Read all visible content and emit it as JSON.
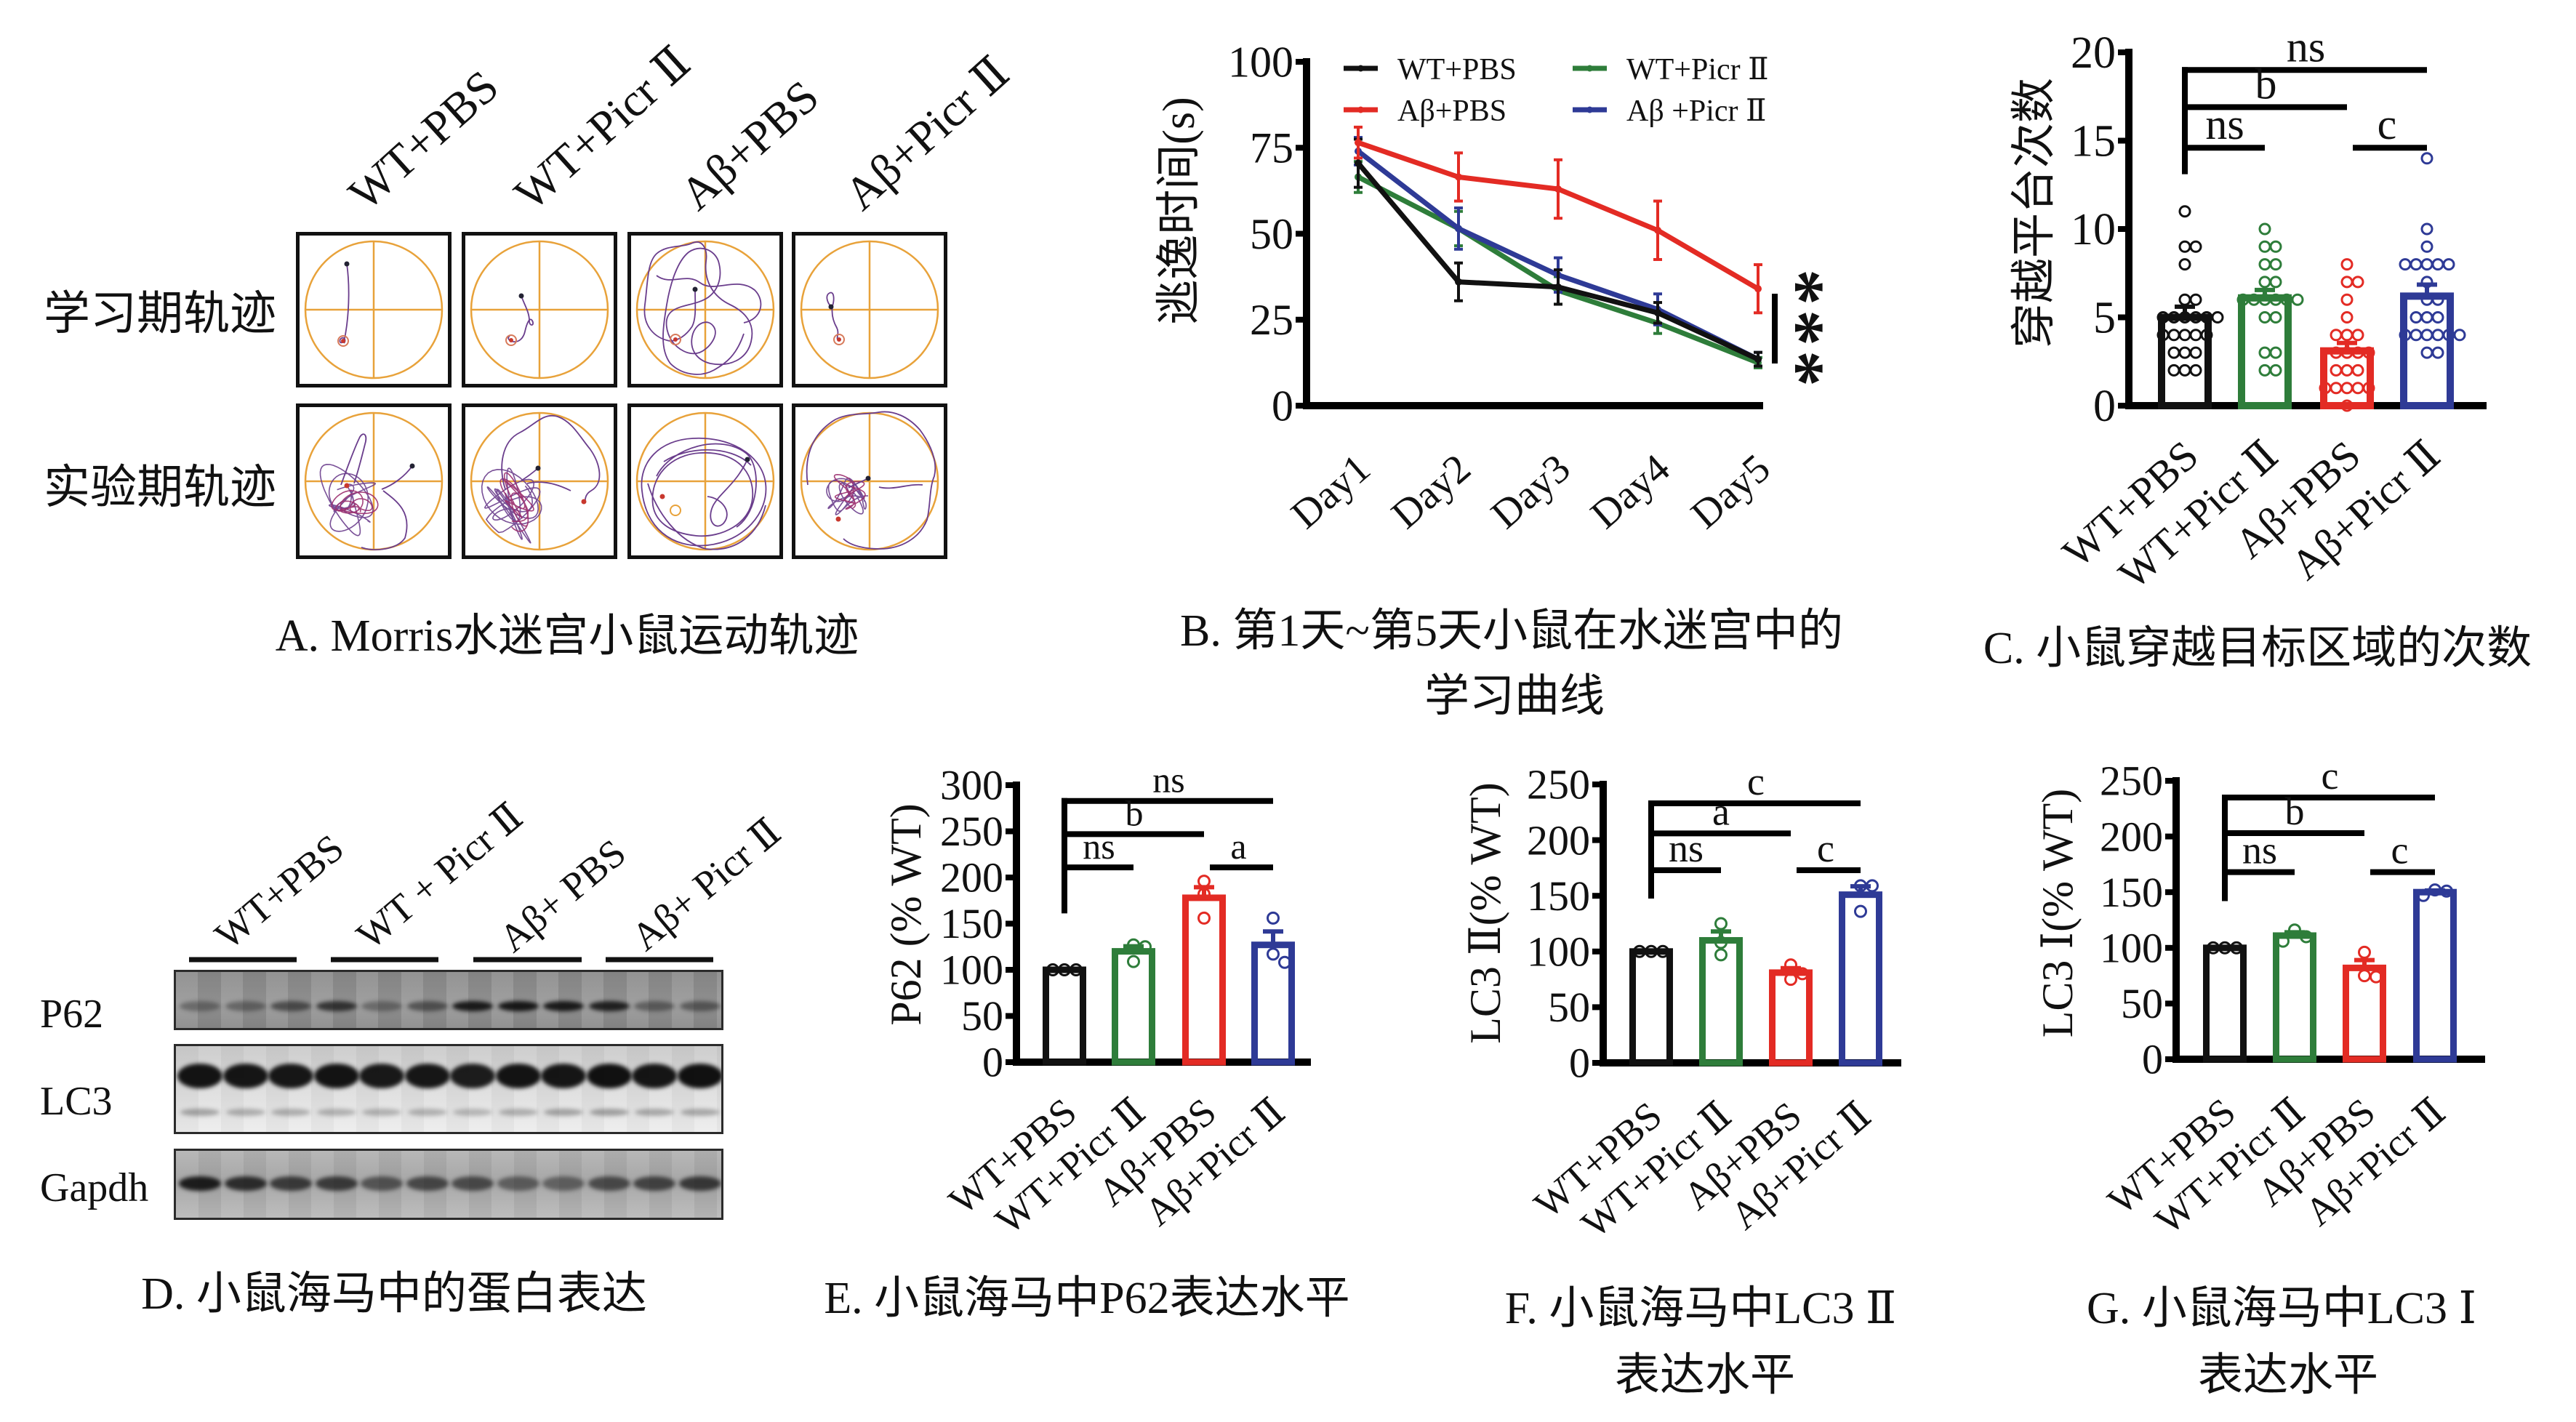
{
  "figure": {
    "panel_a": {
      "column_labels": [
        "WT+PBS",
        "WT+Picr Ⅱ",
        "Aβ+PBS",
        "Aβ+Picr Ⅱ"
      ],
      "row_labels": [
        "学习期轨迹",
        "实验期轨迹"
      ],
      "caption": "A. Morris水迷宫小鼠运动轨迹"
    },
    "panel_d": {
      "group_labels": [
        "WT+PBS",
        "WT + Picr Ⅱ",
        "Aβ+ PBS",
        "Aβ+ Picr Ⅱ"
      ],
      "blots": [
        {
          "label": "P62",
          "band_intensity": [
            0.35,
            0.38,
            0.55,
            0.72,
            0.35,
            0.5,
            0.9,
            0.92,
            0.9,
            0.85,
            0.42,
            0.45
          ]
        },
        {
          "label": "LC3",
          "band_intensity": [
            0.97,
            0.96,
            0.95,
            0.97,
            0.94,
            0.95,
            0.92,
            0.97,
            0.96,
            0.98,
            0.96,
            0.98
          ],
          "lower_band_intensity": [
            0.32,
            0.28,
            0.28,
            0.26,
            0.26,
            0.26,
            0.24,
            0.27,
            0.32,
            0.34,
            0.3,
            0.3
          ]
        },
        {
          "label": "Gapdh",
          "band_intensity": [
            0.9,
            0.8,
            0.7,
            0.7,
            0.55,
            0.62,
            0.6,
            0.48,
            0.45,
            0.6,
            0.65,
            0.72
          ]
        }
      ],
      "caption": "D. 小鼠海马中的蛋白表达"
    }
  },
  "colors": {
    "wt_pbs": "#111111",
    "wt_picr": "#2E7D3A",
    "ab_pbs": "#E32B24",
    "ab_picr": "#2E3A96",
    "maze_pool": "#E8A23A",
    "swim_trace": "#6A3D8C",
    "swim_trace_dense": "#9B2D6E",
    "platform": "#C8382E",
    "start_point": "#222233"
  },
  "chart_data": [
    {
      "type": "line",
      "title_lines": [
        "B. 第1天~第5天小鼠在水迷宫中的",
        "学习曲线"
      ],
      "xlabel": "",
      "ylabel": "逃逸时间(s)",
      "categories": [
        "Day1",
        "Day2",
        "Day3",
        "Day4",
        "Day5"
      ],
      "ylim": [
        0,
        100
      ],
      "yticks": [
        0,
        25,
        50,
        75,
        100
      ],
      "grid": false,
      "legend": "top",
      "series": [
        {
          "name": "WT+PBS",
          "color": "#111111",
          "values": [
            70.5,
            36,
            34.5,
            27,
            13.5
          ],
          "error": [
            7,
            5.5,
            5,
            3,
            2
          ]
        },
        {
          "name": "WT+Picr Ⅱ",
          "color": "#2E7D3A",
          "values": [
            66.5,
            51.5,
            33.5,
            24,
            12.5
          ],
          "error": [
            4.5,
            5,
            4,
            3,
            1.5
          ]
        },
        {
          "name": "Aβ+PBS",
          "color": "#E32B24",
          "values": [
            76.5,
            66.5,
            63,
            51,
            34
          ],
          "error": [
            4.5,
            7,
            8.5,
            8.5,
            7
          ]
        },
        {
          "name": "Aβ +Picr Ⅱ",
          "color": "#2E3A96",
          "values": [
            74,
            51.5,
            38,
            28,
            13.5
          ],
          "error": [
            4,
            6,
            5,
            4.5,
            2
          ]
        }
      ],
      "significance_label": "***"
    },
    {
      "type": "bar",
      "title": "C. 小鼠穿越目标区域的次数",
      "xlabel": "",
      "ylabel": "穿越平台次数",
      "categories": [
        "WT+PBS",
        "WT+Picr Ⅱ",
        "Aβ+PBS",
        "Aβ+Picr Ⅱ"
      ],
      "colors": [
        "#111111",
        "#2E7D3A",
        "#E32B24",
        "#2E3A96"
      ],
      "values": [
        5.0,
        6.1,
        3.1,
        6.2
      ],
      "error": [
        0.6,
        0.45,
        0.45,
        0.65
      ],
      "points": [
        [
          11,
          9,
          9,
          8,
          6,
          6,
          5,
          5,
          5,
          5,
          5,
          5,
          4,
          4,
          4,
          4,
          4,
          3,
          3,
          3,
          2,
          2,
          2
        ],
        [
          10,
          9,
          9,
          8,
          8,
          7,
          7,
          6,
          6,
          6,
          6,
          6,
          6,
          5,
          5,
          3,
          3,
          2,
          2
        ],
        [
          8,
          7,
          7,
          6,
          5,
          4,
          4,
          4,
          3,
          3,
          3,
          3,
          2,
          2,
          2,
          1,
          1,
          1,
          1,
          1,
          0
        ],
        [
          14,
          10,
          9,
          8,
          8,
          8,
          8,
          8,
          7,
          6,
          6,
          5,
          5,
          5,
          4,
          4,
          4,
          4,
          4,
          4,
          3,
          3
        ]
      ],
      "ylim": [
        0,
        20
      ],
      "yticks": [
        0,
        5,
        10,
        15,
        20
      ],
      "grid": false,
      "significance": [
        {
          "between": [
            "WT+PBS",
            "Aβ+Picr Ⅱ"
          ],
          "label": "ns"
        },
        {
          "between": [
            "WT+PBS",
            "Aβ+PBS"
          ],
          "label": "b"
        },
        {
          "between": [
            "WT+PBS",
            "WT+Picr Ⅱ"
          ],
          "label": "ns"
        },
        {
          "between": [
            "Aβ+PBS",
            "Aβ+Picr Ⅱ"
          ],
          "label": "c"
        }
      ]
    },
    {
      "type": "bar",
      "title": "E. 小鼠海马中P62表达水平",
      "xlabel": "",
      "ylabel": "P62 (% WT)",
      "categories": [
        "WT+PBS",
        "WT+Picr Ⅱ",
        "Aβ+PBS",
        "Aβ+Picr Ⅱ"
      ],
      "colors": [
        "#111111",
        "#2E7D3A",
        "#E32B24",
        "#2E3A96"
      ],
      "values": [
        100,
        120,
        178,
        127
      ],
      "error": [
        0,
        5.5,
        11.5,
        14.5
      ],
      "points": [
        [
          100,
          100,
          100
        ],
        [
          127,
          125,
          109
        ],
        [
          196,
          182,
          156
        ],
        [
          156,
          117,
          108
        ]
      ],
      "ylim": [
        0,
        300
      ],
      "yticks": [
        0,
        50,
        100,
        150,
        200,
        250,
        300
      ],
      "grid": false,
      "significance": [
        {
          "between": [
            "WT+PBS",
            "Aβ+Picr Ⅱ"
          ],
          "label": "ns"
        },
        {
          "between": [
            "WT+PBS",
            "Aβ+PBS"
          ],
          "label": "b"
        },
        {
          "between": [
            "WT+PBS",
            "WT+Picr Ⅱ"
          ],
          "label": "ns"
        },
        {
          "between": [
            "Aβ+PBS",
            "Aβ+Picr Ⅱ"
          ],
          "label": "a"
        }
      ]
    },
    {
      "type": "bar",
      "title_lines": [
        "F. 小鼠海马中LC3 Ⅱ",
        "表达水平"
      ],
      "xlabel": "",
      "ylabel": "LC3 Ⅱ(% WT)",
      "categories": [
        "WT+PBS",
        "WT+Picr Ⅱ",
        "Aβ+PBS",
        "Aβ+Picr Ⅱ"
      ],
      "colors": [
        "#111111",
        "#2E7D3A",
        "#E32B24",
        "#2E3A96"
      ],
      "values": [
        100,
        110,
        81,
        151
      ],
      "error": [
        0,
        8,
        4,
        7.5
      ],
      "points": [
        [
          100,
          100,
          100
        ],
        [
          125,
          108,
          97
        ],
        [
          88,
          80,
          75
        ],
        [
          159,
          159,
          136
        ]
      ],
      "ylim": [
        0,
        250
      ],
      "yticks": [
        0,
        50,
        100,
        150,
        200,
        250
      ],
      "grid": false,
      "significance": [
        {
          "between": [
            "WT+PBS",
            "Aβ+Picr Ⅱ"
          ],
          "label": "c"
        },
        {
          "between": [
            "WT+PBS",
            "Aβ+PBS"
          ],
          "label": "a"
        },
        {
          "between": [
            "WT+PBS",
            "WT+Picr Ⅱ"
          ],
          "label": "ns"
        },
        {
          "between": [
            "Aβ+PBS",
            "Aβ+Picr Ⅱ"
          ],
          "label": "c"
        }
      ]
    },
    {
      "type": "bar",
      "title_lines": [
        "G. 小鼠海马中LC3 Ⅰ",
        "表达水平"
      ],
      "xlabel": "",
      "ylabel": "LC3 Ⅰ(% WT)",
      "categories": [
        "WT+PBS",
        "WT+Picr Ⅱ",
        "Aβ+PBS",
        "Aβ+Picr Ⅱ"
      ],
      "colors": [
        "#111111",
        "#2E7D3A",
        "#E32B24",
        "#2E3A96"
      ],
      "values": [
        100,
        111,
        82,
        150
      ],
      "error": [
        0,
        3,
        7,
        1.5
      ],
      "points": [
        [
          100,
          100,
          100
        ],
        [
          116,
          110,
          106
        ],
        [
          96,
          75,
          74
        ],
        [
          152,
          151,
          147
        ]
      ],
      "ylim": [
        0,
        250
      ],
      "yticks": [
        0,
        50,
        100,
        150,
        200,
        250
      ],
      "grid": false,
      "significance": [
        {
          "between": [
            "WT+PBS",
            "Aβ+Picr Ⅱ"
          ],
          "label": "c"
        },
        {
          "between": [
            "WT+PBS",
            "Aβ+PBS"
          ],
          "label": "b"
        },
        {
          "between": [
            "WT+PBS",
            "WT+Picr Ⅱ"
          ],
          "label": "ns"
        },
        {
          "between": [
            "Aβ+PBS",
            "Aβ+Picr Ⅱ"
          ],
          "label": "c"
        }
      ]
    }
  ]
}
